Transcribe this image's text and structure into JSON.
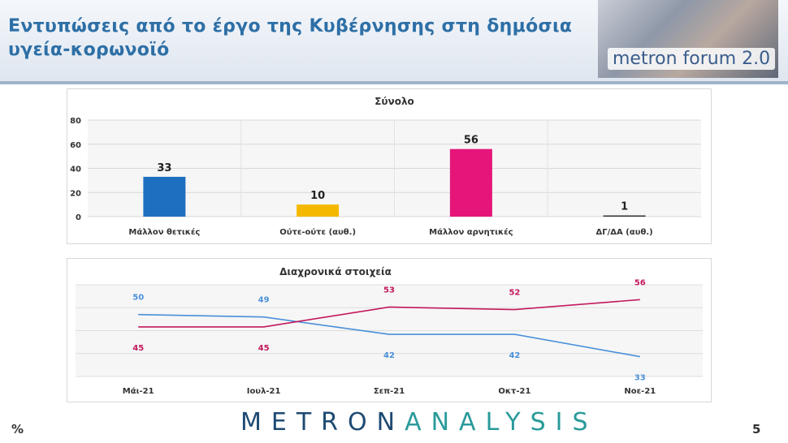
{
  "header": {
    "title": "Εντυπώσεις από το έργο της Κυβέρνησης στη δημόσια υγεία-κορωνοϊό",
    "logo_text": "metron forum 2.0"
  },
  "footer": {
    "percent_symbol": "%",
    "page_number": "5",
    "brand_part1": "METRON",
    "brand_part2": "ANALYSIS"
  },
  "chart_data": [
    {
      "type": "bar",
      "title": "Σύνολο",
      "categories": [
        "Μάλλον θετικές",
        "Ούτε-ούτε (αυθ.)",
        "Μάλλον αρνητικές",
        "ΔΓ/ΔΑ (αυθ.)"
      ],
      "values": [
        33,
        10,
        56,
        1
      ],
      "colors": [
        "#1f6fc0",
        "#f5b800",
        "#e5157a",
        "#333333"
      ],
      "ylim": [
        0,
        80
      ],
      "yticks": [
        0,
        20,
        40,
        60,
        80
      ],
      "grid": true,
      "xlabel": "",
      "ylabel": ""
    },
    {
      "type": "line",
      "title": "Διαχρονικά στοιχεία",
      "categories": [
        "Μάι-21",
        "Ιουλ-21",
        "Σεπ-21",
        "Οκτ-21",
        "Νοε-21"
      ],
      "ylim": [
        25,
        62
      ],
      "grid": true,
      "series": [
        {
          "values": [
            50,
            49,
            42,
            42,
            33
          ],
          "color": "#4a90d9"
        },
        {
          "values": [
            45,
            45,
            53,
            52,
            56
          ],
          "color": "#c2185b"
        }
      ]
    }
  ]
}
